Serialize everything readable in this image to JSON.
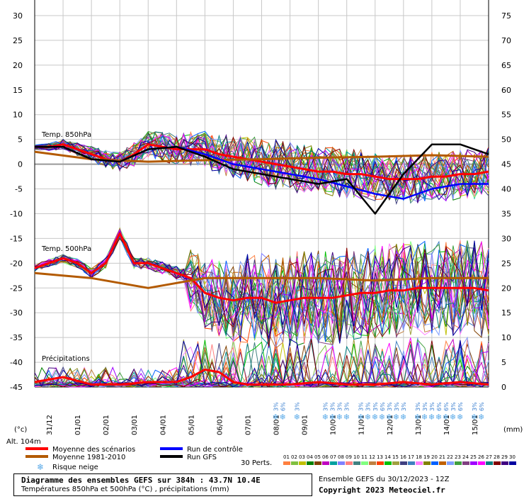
{
  "chart_data": {
    "type": "line",
    "left_axis": {
      "unit": "(°c)",
      "ticks": [
        30,
        25,
        20,
        15,
        10,
        5,
        0,
        -5,
        -10,
        -15,
        -20,
        -25,
        -30,
        -35,
        -40,
        -45
      ],
      "range": [
        -45,
        30
      ]
    },
    "right_axis": {
      "unit": "(mm)",
      "ticks": [
        75,
        70,
        65,
        60,
        55,
        50,
        45,
        40,
        35,
        30,
        25,
        20,
        15,
        10,
        5,
        0
      ],
      "range": [
        0,
        75
      ]
    },
    "x_axis": {
      "dates": [
        "31/12",
        "01/01",
        "02/01",
        "03/01",
        "04/01",
        "05/01",
        "06/01",
        "07/01",
        "08/01",
        "09/01",
        "10/01",
        "11/01",
        "12/01",
        "13/01",
        "14/01",
        "15/01"
      ],
      "hours_per_day": 24,
      "start_hour": 0,
      "end_hour": 384
    },
    "panel_labels": {
      "t850": "Temp. 850hPa",
      "t500": "Temp. 500hPa",
      "precip": "Précipitations"
    },
    "altitude": "Alt. 104m",
    "series": [
      {
        "name": "Moyenne des scénarios",
        "color": "#ff0000",
        "unit": "°C",
        "level": "850hPa",
        "x": [
          0,
          12,
          24,
          36,
          48,
          60,
          72,
          84,
          96,
          108,
          120,
          132,
          144,
          156,
          168,
          180,
          192,
          204,
          216,
          228,
          240,
          252,
          264,
          276,
          288,
          300,
          312,
          324,
          336,
          348,
          360,
          372,
          384
        ],
        "y": [
          3.5,
          3.5,
          4,
          3,
          2,
          1,
          0.5,
          2,
          4,
          3.5,
          3,
          3,
          3,
          2,
          1.5,
          1,
          0.5,
          0,
          -0.5,
          -1,
          -1.5,
          -1.5,
          -2,
          -2,
          -2.5,
          -3,
          -3,
          -3,
          -2.5,
          -2.5,
          -2,
          -2,
          -1.5
        ]
      },
      {
        "name": "Moyenne des scénarios",
        "color": "#ff0000",
        "unit": "°C",
        "level": "500hPa",
        "x": [
          0,
          12,
          24,
          36,
          48,
          60,
          72,
          84,
          96,
          108,
          120,
          132,
          144,
          156,
          168,
          180,
          192,
          204,
          216,
          228,
          240,
          252,
          264,
          276,
          288,
          300,
          312,
          324,
          336,
          348,
          360,
          372,
          384
        ],
        "y": [
          -21,
          -20,
          -19,
          -20,
          -22,
          -20,
          -14,
          -20,
          -20,
          -21,
          -22,
          -23,
          -26,
          -27,
          -27.5,
          -27,
          -27,
          -28,
          -27.5,
          -27,
          -27,
          -27,
          -26.5,
          -26,
          -26,
          -25.5,
          -25.5,
          -25,
          -25,
          -25,
          -25,
          -25,
          -25.5
        ]
      },
      {
        "name": "Moyenne 1981-2010",
        "color": "#b35a00",
        "unit": "°C",
        "level": "850hPa",
        "x": [
          0,
          48,
          96,
          144,
          192,
          240,
          288,
          336,
          384
        ],
        "y": [
          2.5,
          1,
          0.5,
          0.8,
          1,
          1.3,
          1.5,
          1.8,
          1.5
        ]
      },
      {
        "name": "Moyenne 1981-2010",
        "color": "#b35a00",
        "unit": "°C",
        "level": "500hPa",
        "x": [
          0,
          48,
          72,
          96,
          120,
          144,
          192,
          240,
          288,
          336,
          384
        ],
        "y": [
          -22,
          -23,
          -24,
          -25,
          -24,
          -23,
          -23,
          -23,
          -23.5,
          -23,
          -23
        ]
      },
      {
        "name": "Run de contrôle",
        "color": "#0000ff",
        "unit": "°C",
        "level": "850hPa",
        "x": [
          0,
          24,
          48,
          72,
          96,
          120,
          144,
          168,
          192,
          216,
          240,
          264,
          288,
          312,
          336,
          360,
          384
        ],
        "y": [
          3.5,
          3.5,
          1,
          0.5,
          3,
          3.5,
          2,
          0,
          -1,
          -2,
          -3,
          -4.5,
          -6,
          -7,
          -5,
          -4,
          -4
        ]
      },
      {
        "name": "Run GFS",
        "color": "#000000",
        "unit": "°C",
        "level": "850hPa",
        "x": [
          0,
          24,
          48,
          72,
          96,
          120,
          144,
          168,
          192,
          216,
          240,
          264,
          288,
          312,
          336,
          360,
          384
        ],
        "y": [
          3.5,
          3.5,
          1,
          0.5,
          3,
          3.5,
          1.5,
          -1,
          -2,
          -3,
          -4,
          -3,
          -10,
          -2,
          4,
          4,
          2
        ]
      },
      {
        "name": "Moyenne des scénarios",
        "color": "#ff0000",
        "unit": "mm",
        "level": "precip",
        "x": [
          0,
          24,
          48,
          72,
          96,
          120,
          132,
          144,
          156,
          168,
          180,
          192,
          216,
          240,
          264,
          288,
          312,
          336,
          360,
          384
        ],
        "y": [
          1,
          2,
          0.5,
          0.5,
          1,
          1,
          2,
          3.5,
          3,
          1,
          0.5,
          0.5,
          0.5,
          1,
          0.5,
          0.5,
          1,
          0.5,
          1,
          0.5
        ]
      }
    ],
    "perturbations": {
      "label": "30 Perts.",
      "ids": [
        "01",
        "02",
        "03",
        "04",
        "05",
        "06",
        "07",
        "08",
        "09",
        "10",
        "11",
        "12",
        "13",
        "14",
        "15",
        "16",
        "17",
        "18",
        "19",
        "20",
        "21",
        "22",
        "23",
        "24",
        "25",
        "26",
        "27",
        "28",
        "29",
        "30"
      ],
      "colors": [
        "#ff8040",
        "#80c040",
        "#c0c000",
        "#008000",
        "#804000",
        "#c000c0",
        "#00a0a0",
        "#8080ff",
        "#ff8080",
        "#408080",
        "#80ff80",
        "#c08040",
        "#ff4000",
        "#00c000",
        "#a0a040",
        "#404080",
        "#4080c0",
        "#ff80ff",
        "#808000",
        "#0060ff",
        "#c06000",
        "#80a0ff",
        "#40a040",
        "#804080",
        "#a000ff",
        "#ff00ff",
        "#008080",
        "#800000",
        "#400080",
        "#0000a0"
      ]
    },
    "snow_risk": {
      "label": "Risque neige",
      "x": [
        204,
        210,
        222,
        246,
        252,
        258,
        264,
        276,
        282,
        288,
        294,
        300,
        306,
        312,
        324,
        330,
        336,
        342,
        348,
        354,
        360,
        372,
        378
      ],
      "values": [
        "3%",
        "6%",
        "3%",
        "3%",
        "3%",
        "3%",
        "3%",
        "3%",
        "3%",
        "3%",
        "6%",
        "3%",
        "3%",
        "3%",
        "3%",
        "3%",
        "3%",
        "6%",
        "6%",
        "3%",
        "6%",
        "3%",
        "6%"
      ]
    },
    "legend": [
      {
        "label": "Moyenne des scénarios",
        "color": "#ff0000"
      },
      {
        "label": "Moyenne 1981-2010",
        "color": "#b35a00"
      },
      {
        "label": "Run de contrôle",
        "color": "#0000ff"
      },
      {
        "label": "Run GFS",
        "color": "#000000"
      }
    ]
  },
  "footer": {
    "title": "Diagramme des ensembles GEFS sur 384h : 43.7N 10.4E",
    "subtitle": "Températures 850hPa et 500hPa (°C) , précipitations (mm)",
    "run": "Ensemble GEFS du 30/12/2023 - 12Z",
    "copyright": "Copyright 2023 Meteociel.fr"
  }
}
